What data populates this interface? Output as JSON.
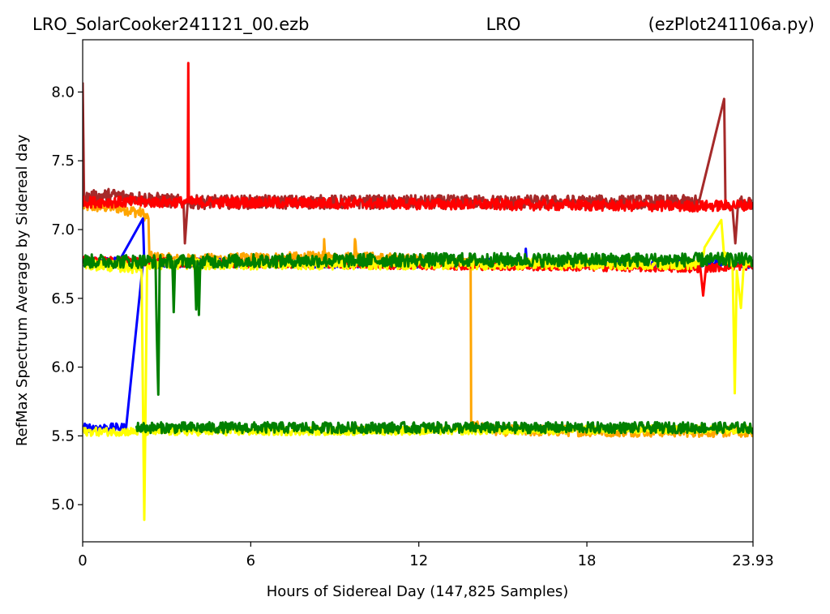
{
  "header": {
    "left": "LRO_SolarCooker241121_00.ezb",
    "center": "LRO",
    "right": "(ezPlot241106a.py)"
  },
  "chart_data": {
    "type": "line",
    "xlabel": "Hours of Sidereal Day  (147,825 Samples)",
    "ylabel": "RefMax Spectrum Average by Sidereal day",
    "xlim": [
      0,
      23.93
    ],
    "ylim": [
      4.73,
      8.38
    ],
    "xticks": [
      0,
      6,
      12,
      18,
      23.93
    ],
    "xtick_labels": [
      "0",
      "6",
      "12",
      "18",
      "23.93"
    ],
    "yticks": [
      5.0,
      5.5,
      6.0,
      6.5,
      7.0,
      7.5,
      8.0
    ],
    "ytick_labels": [
      "5.0",
      "5.5",
      "6.0",
      "6.5",
      "7.0",
      "7.5",
      "8.0"
    ],
    "grid": false,
    "legend": "none",
    "series": [
      {
        "color": "#ffa500",
        "noise": 0.04,
        "points": [
          [
            0,
            7.17
          ],
          [
            1.2,
            7.16
          ],
          [
            2.1,
            7.12
          ],
          [
            2.35,
            7.08
          ],
          [
            2.38,
            6.8
          ],
          [
            3.5,
            6.78
          ],
          [
            8.6,
            6.8
          ],
          [
            8.62,
            6.93
          ],
          [
            8.66,
            6.79
          ],
          [
            9.7,
            6.8
          ],
          [
            9.72,
            6.93
          ],
          [
            9.8,
            6.8
          ],
          [
            13.85,
            6.76
          ],
          [
            13.87,
            5.57
          ],
          [
            15,
            5.54
          ],
          [
            23.93,
            5.53
          ]
        ]
      },
      {
        "color": "#0000ff",
        "noise": 0.03,
        "points": [
          [
            0,
            6.77
          ],
          [
            1.3,
            6.77
          ],
          [
            2.15,
            7.08
          ],
          [
            2.2,
            6.75
          ],
          [
            4,
            6.76
          ],
          [
            10,
            6.75
          ],
          [
            15.8,
            6.76
          ],
          [
            15.82,
            6.86
          ],
          [
            15.86,
            6.75
          ],
          [
            23.93,
            6.75
          ]
        ]
      },
      {
        "color": "#0000ff",
        "noise": 0.03,
        "points": [
          [
            0,
            5.56
          ],
          [
            1.55,
            5.56
          ],
          [
            2.15,
            6.75
          ]
        ]
      },
      {
        "color": "#a52a2a",
        "noise": 0.05,
        "points": [
          [
            0,
            8.07
          ],
          [
            0.05,
            7.23
          ],
          [
            1,
            7.25
          ],
          [
            3.6,
            7.2
          ],
          [
            3.65,
            6.9
          ],
          [
            3.75,
            7.2
          ],
          [
            22,
            7.2
          ],
          [
            22.9,
            7.95
          ],
          [
            22.95,
            7.15
          ],
          [
            23.2,
            7.15
          ],
          [
            23.3,
            6.9
          ],
          [
            23.4,
            7.2
          ],
          [
            23.93,
            7.2
          ]
        ]
      },
      {
        "color": "#ff0000",
        "noise": 0.04,
        "points": [
          [
            0,
            7.2
          ],
          [
            3.75,
            7.2
          ],
          [
            3.77,
            8.21
          ],
          [
            3.79,
            7.2
          ],
          [
            22,
            7.17
          ],
          [
            23.93,
            7.18
          ]
        ]
      },
      {
        "color": "#ff0000",
        "noise": 0.03,
        "points": [
          [
            0,
            6.78
          ],
          [
            3.2,
            6.76
          ],
          [
            3.25,
            6.55
          ],
          [
            3.3,
            6.76
          ],
          [
            22.05,
            6.72
          ],
          [
            22.15,
            6.52
          ],
          [
            22.25,
            6.72
          ],
          [
            23.93,
            6.74
          ]
        ]
      },
      {
        "color": "#ffff00",
        "noise": 0.04,
        "points": [
          [
            0,
            6.75
          ],
          [
            2.1,
            6.72
          ],
          [
            2.2,
            4.89
          ],
          [
            2.3,
            6.75
          ],
          [
            22,
            6.75
          ],
          [
            22.2,
            6.87
          ],
          [
            22.8,
            7.07
          ],
          [
            22.9,
            6.8
          ],
          [
            23.2,
            6.75
          ],
          [
            23.28,
            5.81
          ],
          [
            23.35,
            6.7
          ],
          [
            23.5,
            6.43
          ],
          [
            23.6,
            6.75
          ],
          [
            23.93,
            6.75
          ]
        ]
      },
      {
        "color": "#ffff00",
        "noise": 0.03,
        "points": [
          [
            0,
            5.53
          ],
          [
            14,
            5.54
          ],
          [
            23.93,
            5.55
          ]
        ]
      },
      {
        "color": "#008000",
        "noise": 0.05,
        "points": [
          [
            0,
            6.77
          ],
          [
            2.6,
            6.77
          ],
          [
            2.65,
            6.2
          ],
          [
            2.7,
            5.8
          ],
          [
            2.75,
            6.77
          ],
          [
            3.2,
            6.77
          ],
          [
            3.25,
            6.4
          ],
          [
            3.3,
            6.77
          ],
          [
            4.0,
            6.77
          ],
          [
            4.05,
            6.42
          ],
          [
            4.1,
            6.77
          ],
          [
            4.15,
            6.38
          ],
          [
            4.2,
            6.77
          ],
          [
            12,
            6.78
          ],
          [
            23.93,
            6.78
          ]
        ]
      },
      {
        "color": "#008000",
        "noise": 0.04,
        "points": [
          [
            1.9,
            5.56
          ],
          [
            12,
            5.56
          ],
          [
            23.93,
            5.56
          ]
        ]
      }
    ]
  }
}
